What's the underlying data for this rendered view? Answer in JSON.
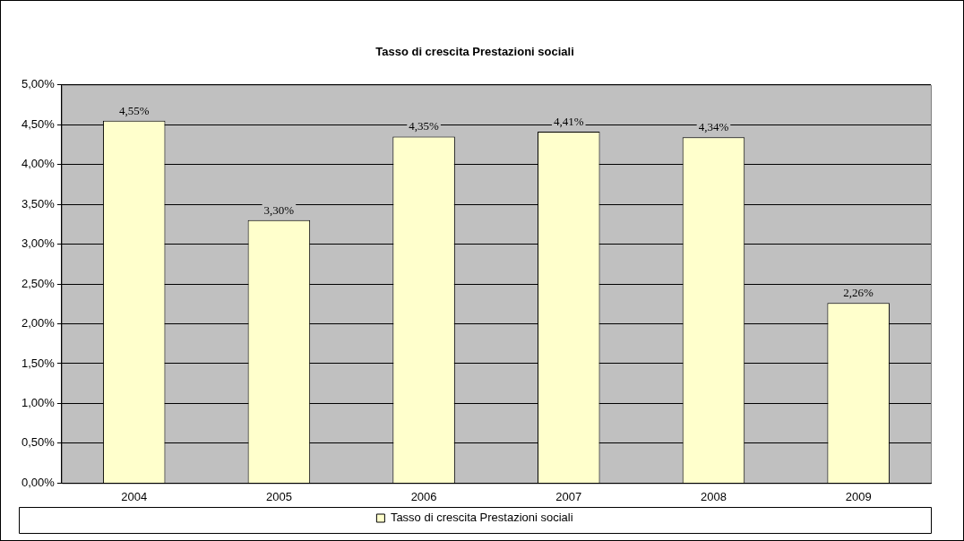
{
  "chart_data": {
    "type": "bar",
    "title": "Tasso di crescita Prestazioni sociali",
    "categories": [
      "2004",
      "2005",
      "2006",
      "2007",
      "2008",
      "2009"
    ],
    "series": [
      {
        "name": "Tasso di crescita Prestazioni sociali",
        "color": "#ffffcc",
        "values": [
          4.55,
          3.3,
          4.35,
          4.41,
          4.34,
          2.26
        ],
        "value_labels": [
          "4,55%",
          "3,30%",
          "4,35%",
          "4,41%",
          "4,34%",
          "2,26%"
        ]
      }
    ],
    "ylim": [
      0,
      5
    ],
    "yticks": [
      {
        "value": 0,
        "label": "0,00%"
      },
      {
        "value": 0.5,
        "label": "0,50%"
      },
      {
        "value": 1,
        "label": "1,00%"
      },
      {
        "value": 1.5,
        "label": "1,50%"
      },
      {
        "value": 2,
        "label": "2,00%"
      },
      {
        "value": 2.5,
        "label": "2,50%"
      },
      {
        "value": 3,
        "label": "3,00%"
      },
      {
        "value": 3.5,
        "label": "3,50%"
      },
      {
        "value": 4,
        "label": "4,00%"
      },
      {
        "value": 4.5,
        "label": "4,50%"
      },
      {
        "value": 5,
        "label": "5,00%"
      }
    ],
    "grid": "y",
    "legend": "bottom"
  }
}
